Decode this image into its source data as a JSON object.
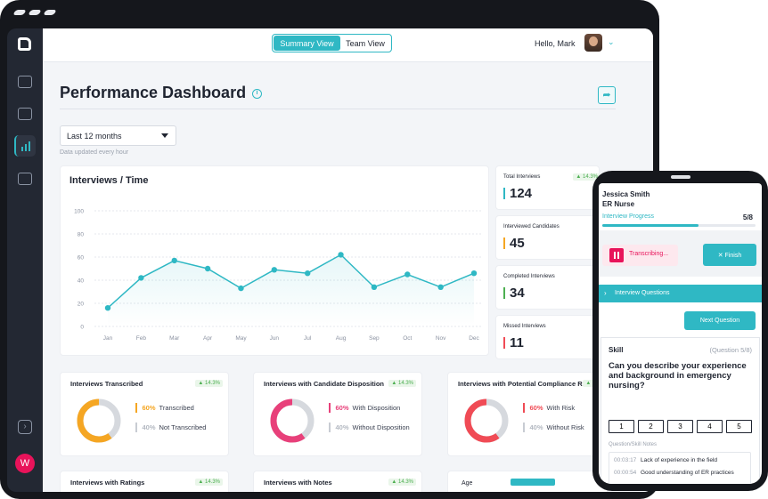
{
  "topbar": {
    "summary_view": "Summary View",
    "team_view": "Team View",
    "greeting": "Hello, Mark"
  },
  "page": {
    "title": "Performance Dashboard",
    "date_range": "Last 12 months",
    "updated_note": "Data updated every hour"
  },
  "user": {
    "avatar_initial": "W"
  },
  "colors": {
    "accent": "#2fb8c4",
    "orange": "#f5a623",
    "pink": "#e8407a",
    "red": "#f04b55",
    "green": "#4caf50"
  },
  "chart_data": {
    "type": "line",
    "title": "Interviews / Time",
    "categories": [
      "Jan",
      "Feb",
      "Mar",
      "Apr",
      "May",
      "Jun",
      "Jul",
      "Aug",
      "Sep",
      "Oct",
      "Nov",
      "Dec"
    ],
    "values": [
      16,
      42,
      57,
      50,
      33,
      49,
      46,
      62,
      34,
      45,
      34,
      46
    ],
    "yticks": [
      0,
      20,
      40,
      60,
      80,
      100
    ],
    "ylim": [
      0,
      100
    ],
    "grid": true
  },
  "stats": [
    {
      "label": "Total Interviews",
      "value": "124",
      "color": "#2fb8c4",
      "badge": "▲ 14.3%"
    },
    {
      "label": "Interviewed Candidates",
      "value": "45",
      "color": "#f5a623"
    },
    {
      "label": "Completed Interviews",
      "value": "34",
      "color": "#4caf50"
    },
    {
      "label": "Missed Interviews",
      "value": "11",
      "color": "#f04b55"
    }
  ],
  "donuts": [
    {
      "title": "Interviews Transcribed",
      "badge": "▲ 14.3%",
      "color": "#f5a623",
      "fraction": 0.6,
      "p1": "60%",
      "l1": "Transcribed",
      "p2": "40%",
      "l2": "Not Transcribed"
    },
    {
      "title": "Interviews with Candidate Disposition",
      "badge": "▲ 14.3%",
      "color": "#e8407a",
      "fraction": 0.6,
      "p1": "60%",
      "l1": "With Disposition",
      "p2": "40%",
      "l2": "Without Disposition"
    },
    {
      "title": "Interviews with Potential Compliance Risk",
      "badge": "▲ 14.3%",
      "color": "#f04b55",
      "fraction": 0.6,
      "p1": "60%",
      "l1": "With Risk",
      "p2": "40%",
      "l2": "Without Risk"
    }
  ],
  "mini_cards": [
    {
      "title": "Interviews with Ratings",
      "badge": "▲ 14.3%"
    },
    {
      "title": "Interviews with Notes",
      "badge": "▲ 14.3%"
    }
  ],
  "age_label": "Age",
  "phone": {
    "name": "Jessica Smith",
    "role": "ER Nurse",
    "progress_label": "Interview Progress",
    "progress_text": "5/8",
    "progress_fraction": 0.625,
    "transcribing": "Transcribing...",
    "finish": "✕  Finish",
    "questions_bar": "Interview Questions",
    "next_question": "Next Question",
    "skill": "Skill",
    "question_num": "(Question 5/8)",
    "question": "Can you describe your experience and background in emergency nursing?",
    "ratings": [
      "1",
      "2",
      "3",
      "4",
      "5"
    ],
    "notes_label": "Question/Skill Notes",
    "notes": [
      {
        "time": "00:03:17",
        "text": "Lack of experience in the field"
      },
      {
        "time": "00:00:54",
        "text": "Good understanding of ER practices"
      }
    ]
  }
}
